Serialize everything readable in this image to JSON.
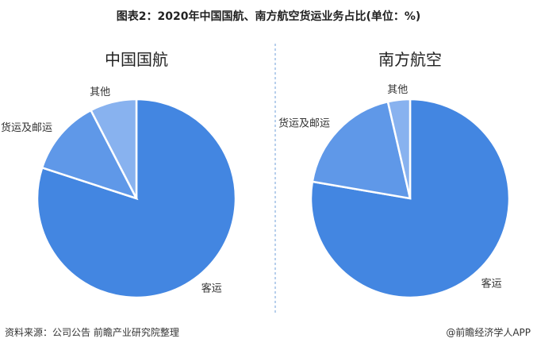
{
  "title": "图表2：2020年中国国航、南方航空货运业务占比(单位：%)",
  "source": "资料来源：公司公告 前瞻产业研究院整理",
  "brand": "@前瞻经济学人APP",
  "colors": {
    "客运": "#4386e1",
    "货运及邮运": "#5f98e8",
    "其他": "#88b2ef"
  },
  "chart_data": [
    {
      "type": "pie",
      "title": "中国国航",
      "categories": [
        "客运",
        "货运及邮运",
        "其他"
      ],
      "values": [
        80.0,
        12.4,
        7.6
      ]
    },
    {
      "type": "pie",
      "title": "南方航空",
      "categories": [
        "客运",
        "货运及邮运",
        "其他"
      ],
      "values": [
        77.7,
        18.7,
        3.6
      ]
    }
  ]
}
